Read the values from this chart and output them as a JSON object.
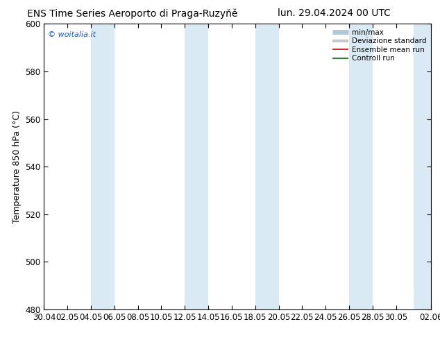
{
  "title_left": "ENS Time Series Aeroporto di Praga-Ruzyňě",
  "title_right": "lun. 29.04.2024 00 UTC",
  "ylabel": "Temperature 850 hPa (°C)",
  "watermark": "© woitalia.it",
  "ylim": [
    480,
    600
  ],
  "yticks": [
    480,
    500,
    520,
    540,
    560,
    580,
    600
  ],
  "x_labels": [
    "30.04",
    "02.05",
    "04.05",
    "06.05",
    "08.05",
    "10.05",
    "12.05",
    "14.05",
    "16.05",
    "18.05",
    "20.05",
    "22.05",
    "24.05",
    "26.05",
    "28.05",
    "30.05",
    "02.06"
  ],
  "x_values": [
    0,
    2,
    4,
    6,
    8,
    10,
    12,
    14,
    16,
    18,
    20,
    22,
    24,
    26,
    28,
    30,
    33
  ],
  "xlim": [
    0,
    33
  ],
  "band_starts": [
    4,
    12,
    18,
    26,
    31.5
  ],
  "band_ends": [
    6,
    14,
    20,
    28,
    33
  ],
  "bg_color": "#ffffff",
  "band_color": "#daeaf5",
  "legend_items": [
    {
      "label": "min/max",
      "color": "#b0c8d8",
      "lw": 5
    },
    {
      "label": "Deviazione standard",
      "color": "#c8c8c8",
      "lw": 3
    },
    {
      "label": "Ensemble mean run",
      "color": "#cc0000",
      "lw": 1.2
    },
    {
      "label": "Controll run",
      "color": "#006600",
      "lw": 1.2
    }
  ],
  "title_fontsize": 10,
  "ylabel_fontsize": 9,
  "tick_fontsize": 8.5,
  "watermark_fontsize": 8,
  "legend_fontsize": 7.5
}
